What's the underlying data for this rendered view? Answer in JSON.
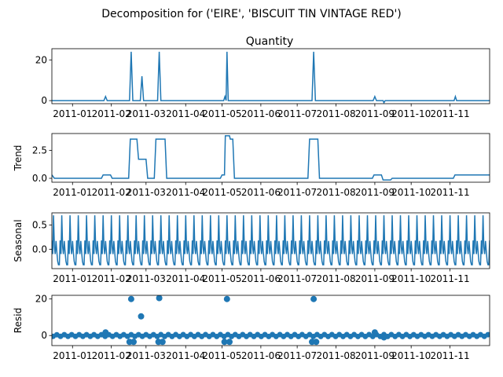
{
  "suptitle": "Decomposition for ('EIRE', 'BISCUIT TIN VINTAGE RED')",
  "colors": {
    "line": "#1f77b4",
    "axis": "#000000",
    "background": "#ffffff"
  },
  "x_ticks": [
    "2011-01",
    "2011-02",
    "2011-03",
    "2011-04",
    "2011-05",
    "2011-06",
    "2011-07",
    "2011-08",
    "2011-09",
    "2011-10",
    "2011-11"
  ],
  "chart_data": [
    {
      "type": "line",
      "title": "Quantity",
      "ylabel": "",
      "ylim": [
        -1.5,
        25.5
      ],
      "yticks": [
        0,
        20
      ],
      "xlim": [
        0,
        53
      ],
      "x_ticks_at": [
        2.5,
        7.2,
        11.4,
        16.2,
        20.6,
        25.3,
        29.7,
        34.4,
        39.1,
        43.5,
        48.2
      ],
      "series": [
        {
          "points": [
            [
              0,
              0
            ],
            [
              6.3,
              0
            ],
            [
              6.5,
              2
            ],
            [
              6.7,
              0
            ],
            [
              9.4,
              0
            ],
            [
              9.6,
              24
            ],
            [
              9.8,
              0
            ],
            [
              10.7,
              0
            ],
            [
              10.9,
              12
            ],
            [
              11.1,
              0
            ],
            [
              12.8,
              0
            ],
            [
              13.0,
              24
            ],
            [
              13.2,
              0
            ],
            [
              20.8,
              0
            ],
            [
              20.95,
              2
            ],
            [
              21.1,
              0
            ],
            [
              21.2,
              24
            ],
            [
              21.35,
              0
            ],
            [
              31.5,
              0
            ],
            [
              31.7,
              24
            ],
            [
              31.9,
              0
            ],
            [
              38.9,
              0
            ],
            [
              39.1,
              2
            ],
            [
              39.3,
              0
            ],
            [
              40.1,
              0
            ],
            [
              40.2,
              -1
            ],
            [
              40.35,
              0
            ],
            [
              48.7,
              0
            ],
            [
              48.85,
              2
            ],
            [
              49.0,
              0
            ]
          ]
        }
      ]
    },
    {
      "type": "line",
      "title": "",
      "ylabel": "Trend",
      "ylim": [
        -0.35,
        4.0
      ],
      "yticks": [
        0.0,
        2.5
      ],
      "ytick_labels": [
        "0.0",
        "2.5"
      ],
      "xlim": [
        0,
        53
      ],
      "x_ticks_at": [
        2.5,
        7.2,
        11.4,
        16.2,
        20.6,
        25.3,
        29.7,
        34.4,
        39.1,
        43.5,
        48.2
      ],
      "series": [
        {
          "points": [
            [
              0,
              0.3
            ],
            [
              0.3,
              0
            ],
            [
              6.0,
              0
            ],
            [
              6.2,
              0.3
            ],
            [
              7.1,
              0.3
            ],
            [
              7.3,
              0
            ],
            [
              9.3,
              0
            ],
            [
              9.5,
              3.5
            ],
            [
              10.3,
              3.5
            ],
            [
              10.5,
              1.7
            ],
            [
              11.4,
              1.7
            ],
            [
              11.6,
              0
            ],
            [
              12.4,
              0
            ],
            [
              12.6,
              3.5
            ],
            [
              13.7,
              3.5
            ],
            [
              13.9,
              0
            ],
            [
              20.4,
              0
            ],
            [
              20.6,
              0.3
            ],
            [
              20.9,
              0.3
            ],
            [
              21.0,
              3.8
            ],
            [
              21.5,
              3.8
            ],
            [
              21.6,
              3.5
            ],
            [
              21.9,
              3.5
            ],
            [
              22.1,
              0
            ],
            [
              31.0,
              0
            ],
            [
              31.2,
              3.5
            ],
            [
              32.2,
              3.5
            ],
            [
              32.4,
              0
            ],
            [
              38.8,
              0
            ],
            [
              39.0,
              0.3
            ],
            [
              39.9,
              0.3
            ],
            [
              40.1,
              -0.15
            ],
            [
              41.0,
              -0.15
            ],
            [
              41.2,
              0
            ],
            [
              48.6,
              0
            ],
            [
              48.8,
              0.3
            ]
          ]
        }
      ]
    },
    {
      "type": "line",
      "title": "",
      "ylabel": "Seasonal",
      "ylim": [
        -0.4,
        0.75
      ],
      "yticks": [
        0.0,
        0.5
      ],
      "ytick_labels": [
        "0.0",
        "0.5"
      ],
      "xlim": [
        0,
        53
      ],
      "x_ticks_at": [
        2.5,
        7.2,
        11.4,
        16.2,
        20.6,
        25.3,
        29.7,
        34.4,
        39.1,
        43.5,
        48.2
      ],
      "periodic": true,
      "period": 1,
      "cycle": [
        0.18,
        -0.1,
        0.7,
        0.05,
        -0.1,
        0.17,
        -0.05,
        -0.25,
        -0.32,
        -0.32
      ],
      "baseline": [
        0.18,
        0.18
      ]
    },
    {
      "type": "scatter",
      "title": "",
      "ylabel": "Resid",
      "ylim": [
        -5.5,
        22
      ],
      "yticks": [
        0,
        20
      ],
      "xlim": [
        0,
        53
      ],
      "x_ticks_at": [
        2.5,
        7.2,
        11.4,
        16.2,
        20.6,
        25.3,
        29.7,
        34.4,
        39.1,
        43.5,
        48.2
      ],
      "baseline": 0,
      "outliers": [
        [
          6.5,
          1.7
        ],
        [
          9.4,
          -3.5
        ],
        [
          9.6,
          20
        ],
        [
          9.9,
          -3.5
        ],
        [
          10.8,
          10.5
        ],
        [
          12.9,
          -3.5
        ],
        [
          13.0,
          20.5
        ],
        [
          13.4,
          -3.5
        ],
        [
          20.9,
          -3.5
        ],
        [
          21.2,
          20
        ],
        [
          21.5,
          -3.5
        ],
        [
          31.5,
          -3.5
        ],
        [
          31.7,
          20
        ],
        [
          32.0,
          -3.5
        ],
        [
          39.1,
          1.7
        ],
        [
          40.2,
          -1
        ]
      ]
    }
  ]
}
